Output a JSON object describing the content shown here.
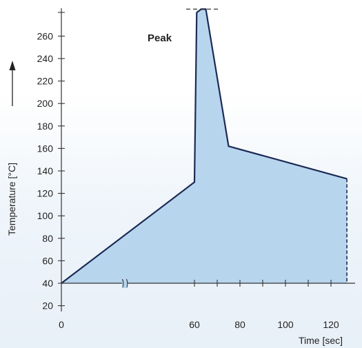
{
  "chart_data": {
    "type": "area",
    "title": "",
    "xlabel": "Time [sec]",
    "ylabel": "Temperature [°C]",
    "x_tick_labels": [
      "0",
      "60",
      "80",
      "100",
      "120"
    ],
    "x_break_after": "0",
    "y_tick_labels": [
      "20",
      "40",
      "60",
      "80",
      "100",
      "120",
      "140",
      "160",
      "180",
      "200",
      "220",
      "240",
      "260"
    ],
    "annotation": "Peak",
    "series": [
      {
        "points": [
          {
            "x": 0,
            "y": 40
          },
          {
            "x": 60,
            "y": 130
          },
          {
            "x": 61,
            "y": 281
          },
          {
            "x": 63,
            "y": 284
          },
          {
            "x": 65,
            "y": 284
          },
          {
            "x": 75,
            "y": 162
          },
          {
            "x": 127,
            "y": 133
          }
        ]
      }
    ],
    "end_marker": {
      "x": 127,
      "style": "dashed"
    },
    "peak_marker": {
      "style": "dashed"
    },
    "colors": {
      "fill": "#b8d5ee",
      "line": "#1b2a55",
      "axis": "#333333"
    },
    "xlim": [
      0,
      127
    ],
    "ylim": [
      20,
      285
    ],
    "grid": false
  }
}
